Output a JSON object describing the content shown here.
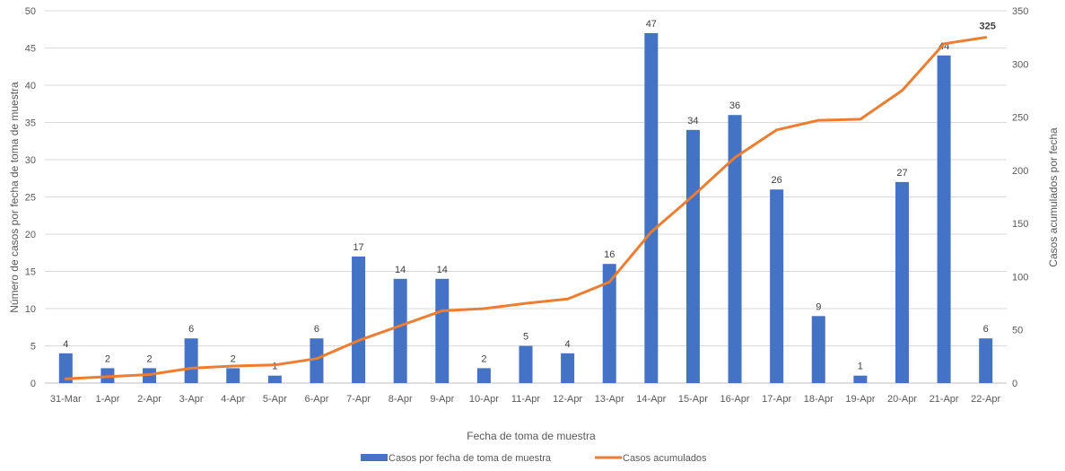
{
  "chart_data": {
    "type": "bar",
    "categories": [
      "31-Mar",
      "1-Apr",
      "2-Apr",
      "3-Apr",
      "4-Apr",
      "5-Apr",
      "6-Apr",
      "7-Apr",
      "8-Apr",
      "9-Apr",
      "10-Apr",
      "11-Apr",
      "12-Apr",
      "13-Apr",
      "14-Apr",
      "15-Apr",
      "16-Apr",
      "17-Apr",
      "18-Apr",
      "19-Apr",
      "20-Apr",
      "21-Apr",
      "22-Apr"
    ],
    "series": [
      {
        "name": "Casos por fecha de toma de muestra",
        "type": "bar",
        "axis": "left",
        "color": "#4472C4",
        "values": [
          4,
          2,
          2,
          6,
          2,
          1,
          6,
          17,
          14,
          14,
          2,
          5,
          4,
          16,
          47,
          34,
          36,
          26,
          9,
          1,
          27,
          44,
          6
        ]
      },
      {
        "name": "Casos acumulados",
        "type": "line",
        "axis": "right",
        "color": "#ED7D31",
        "values": [
          4,
          6,
          8,
          14,
          16,
          17,
          23,
          40,
          54,
          68,
          70,
          75,
          79,
          95,
          142,
          176,
          212,
          238,
          247,
          248,
          275,
          319,
          325
        ]
      }
    ],
    "last_point_label": "325",
    "xlabel": "Fecha de toma de muestra",
    "ylabel": "Número de casos por fecha de toma de muestra",
    "y2label": "Casos acumulados por fecha",
    "ylim": [
      0,
      50
    ],
    "yticks": [
      0,
      5,
      10,
      15,
      20,
      25,
      30,
      35,
      40,
      45,
      50
    ],
    "y2lim": [
      0,
      350
    ],
    "y2ticks": [
      0,
      50,
      100,
      150,
      200,
      250,
      300,
      350
    ],
    "grid": true,
    "legend_position": "bottom"
  }
}
